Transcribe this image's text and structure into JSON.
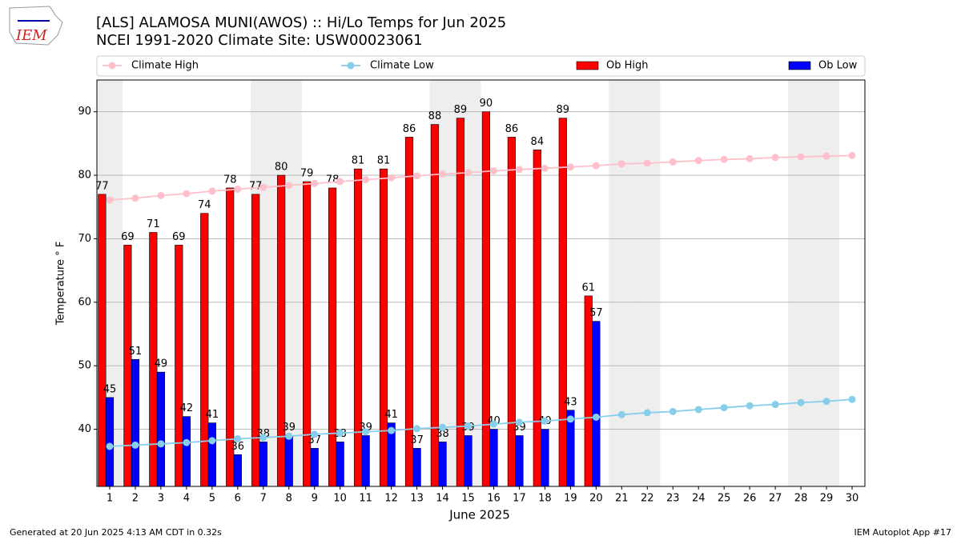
{
  "logo": "IEM",
  "footer": {
    "left": "Generated at 20 Jun 2025 4:13 AM CDT in 0.32s",
    "right": "IEM Autoplot App #17"
  },
  "chart_data": {
    "type": "bar_line",
    "title": "[ALS] ALAMOSA MUNI(AWOS) :: Hi/Lo Temps for Jun 2025",
    "subtitle": "NCEI 1991-2020 Climate Site: USW00023061",
    "xlabel": "June 2025",
    "ylabel": "Temperature ° F",
    "x": [
      1,
      2,
      3,
      4,
      5,
      6,
      7,
      8,
      9,
      10,
      11,
      12,
      13,
      14,
      15,
      16,
      17,
      18,
      19,
      20,
      21,
      22,
      23,
      24,
      25,
      26,
      27,
      28,
      29,
      30
    ],
    "xlim": [
      0.5,
      30.5
    ],
    "xticks": [
      1,
      2,
      3,
      4,
      5,
      6,
      7,
      8,
      9,
      10,
      11,
      12,
      13,
      14,
      15,
      16,
      17,
      18,
      19,
      20,
      21,
      22,
      23,
      24,
      25,
      26,
      27,
      28,
      29,
      30
    ],
    "ylim": [
      31,
      95
    ],
    "yticks": [
      40,
      50,
      60,
      70,
      80,
      90
    ],
    "grid": true,
    "legend": "top",
    "weekend_days": [
      1,
      7,
      8,
      14,
      15,
      21,
      22,
      28,
      29
    ],
    "weekend_color": "#eeeeee",
    "series": [
      {
        "name": "Climate High",
        "kind": "line",
        "color": "#ffc0cb",
        "values": [
          76.1,
          76.4,
          76.8,
          77.1,
          77.5,
          77.8,
          78.1,
          78.4,
          78.7,
          79.0,
          79.3,
          79.6,
          79.9,
          80.2,
          80.4,
          80.7,
          80.9,
          81.1,
          81.3,
          81.5,
          81.8,
          81.9,
          82.1,
          82.3,
          82.5,
          82.6,
          82.8,
          82.9,
          83.0,
          83.1
        ]
      },
      {
        "name": "Climate Low",
        "kind": "line",
        "color": "#87ceeb",
        "values": [
          37.3,
          37.5,
          37.7,
          37.9,
          38.2,
          38.5,
          38.7,
          38.9,
          39.2,
          39.4,
          39.6,
          39.8,
          40.1,
          40.3,
          40.5,
          40.8,
          41.1,
          41.3,
          41.6,
          41.9,
          42.3,
          42.6,
          42.8,
          43.1,
          43.4,
          43.7,
          43.9,
          44.2,
          44.4,
          44.7
        ]
      },
      {
        "name": "Ob High",
        "kind": "bar",
        "color": "#ff0000",
        "values": [
          77,
          69,
          71,
          69,
          74,
          78,
          77,
          80,
          79,
          78,
          81,
          81,
          86,
          88,
          89,
          90,
          86,
          84,
          89,
          61,
          null,
          null,
          null,
          null,
          null,
          null,
          null,
          null,
          null,
          null
        ]
      },
      {
        "name": "Ob Low",
        "kind": "bar",
        "color": "#0000ff",
        "values": [
          45,
          51,
          49,
          42,
          41,
          36,
          38,
          39,
          37,
          38,
          39,
          41,
          37,
          38,
          39,
          40,
          39,
          40,
          43,
          57,
          null,
          null,
          null,
          null,
          null,
          null,
          null,
          null,
          null,
          null
        ]
      }
    ]
  }
}
